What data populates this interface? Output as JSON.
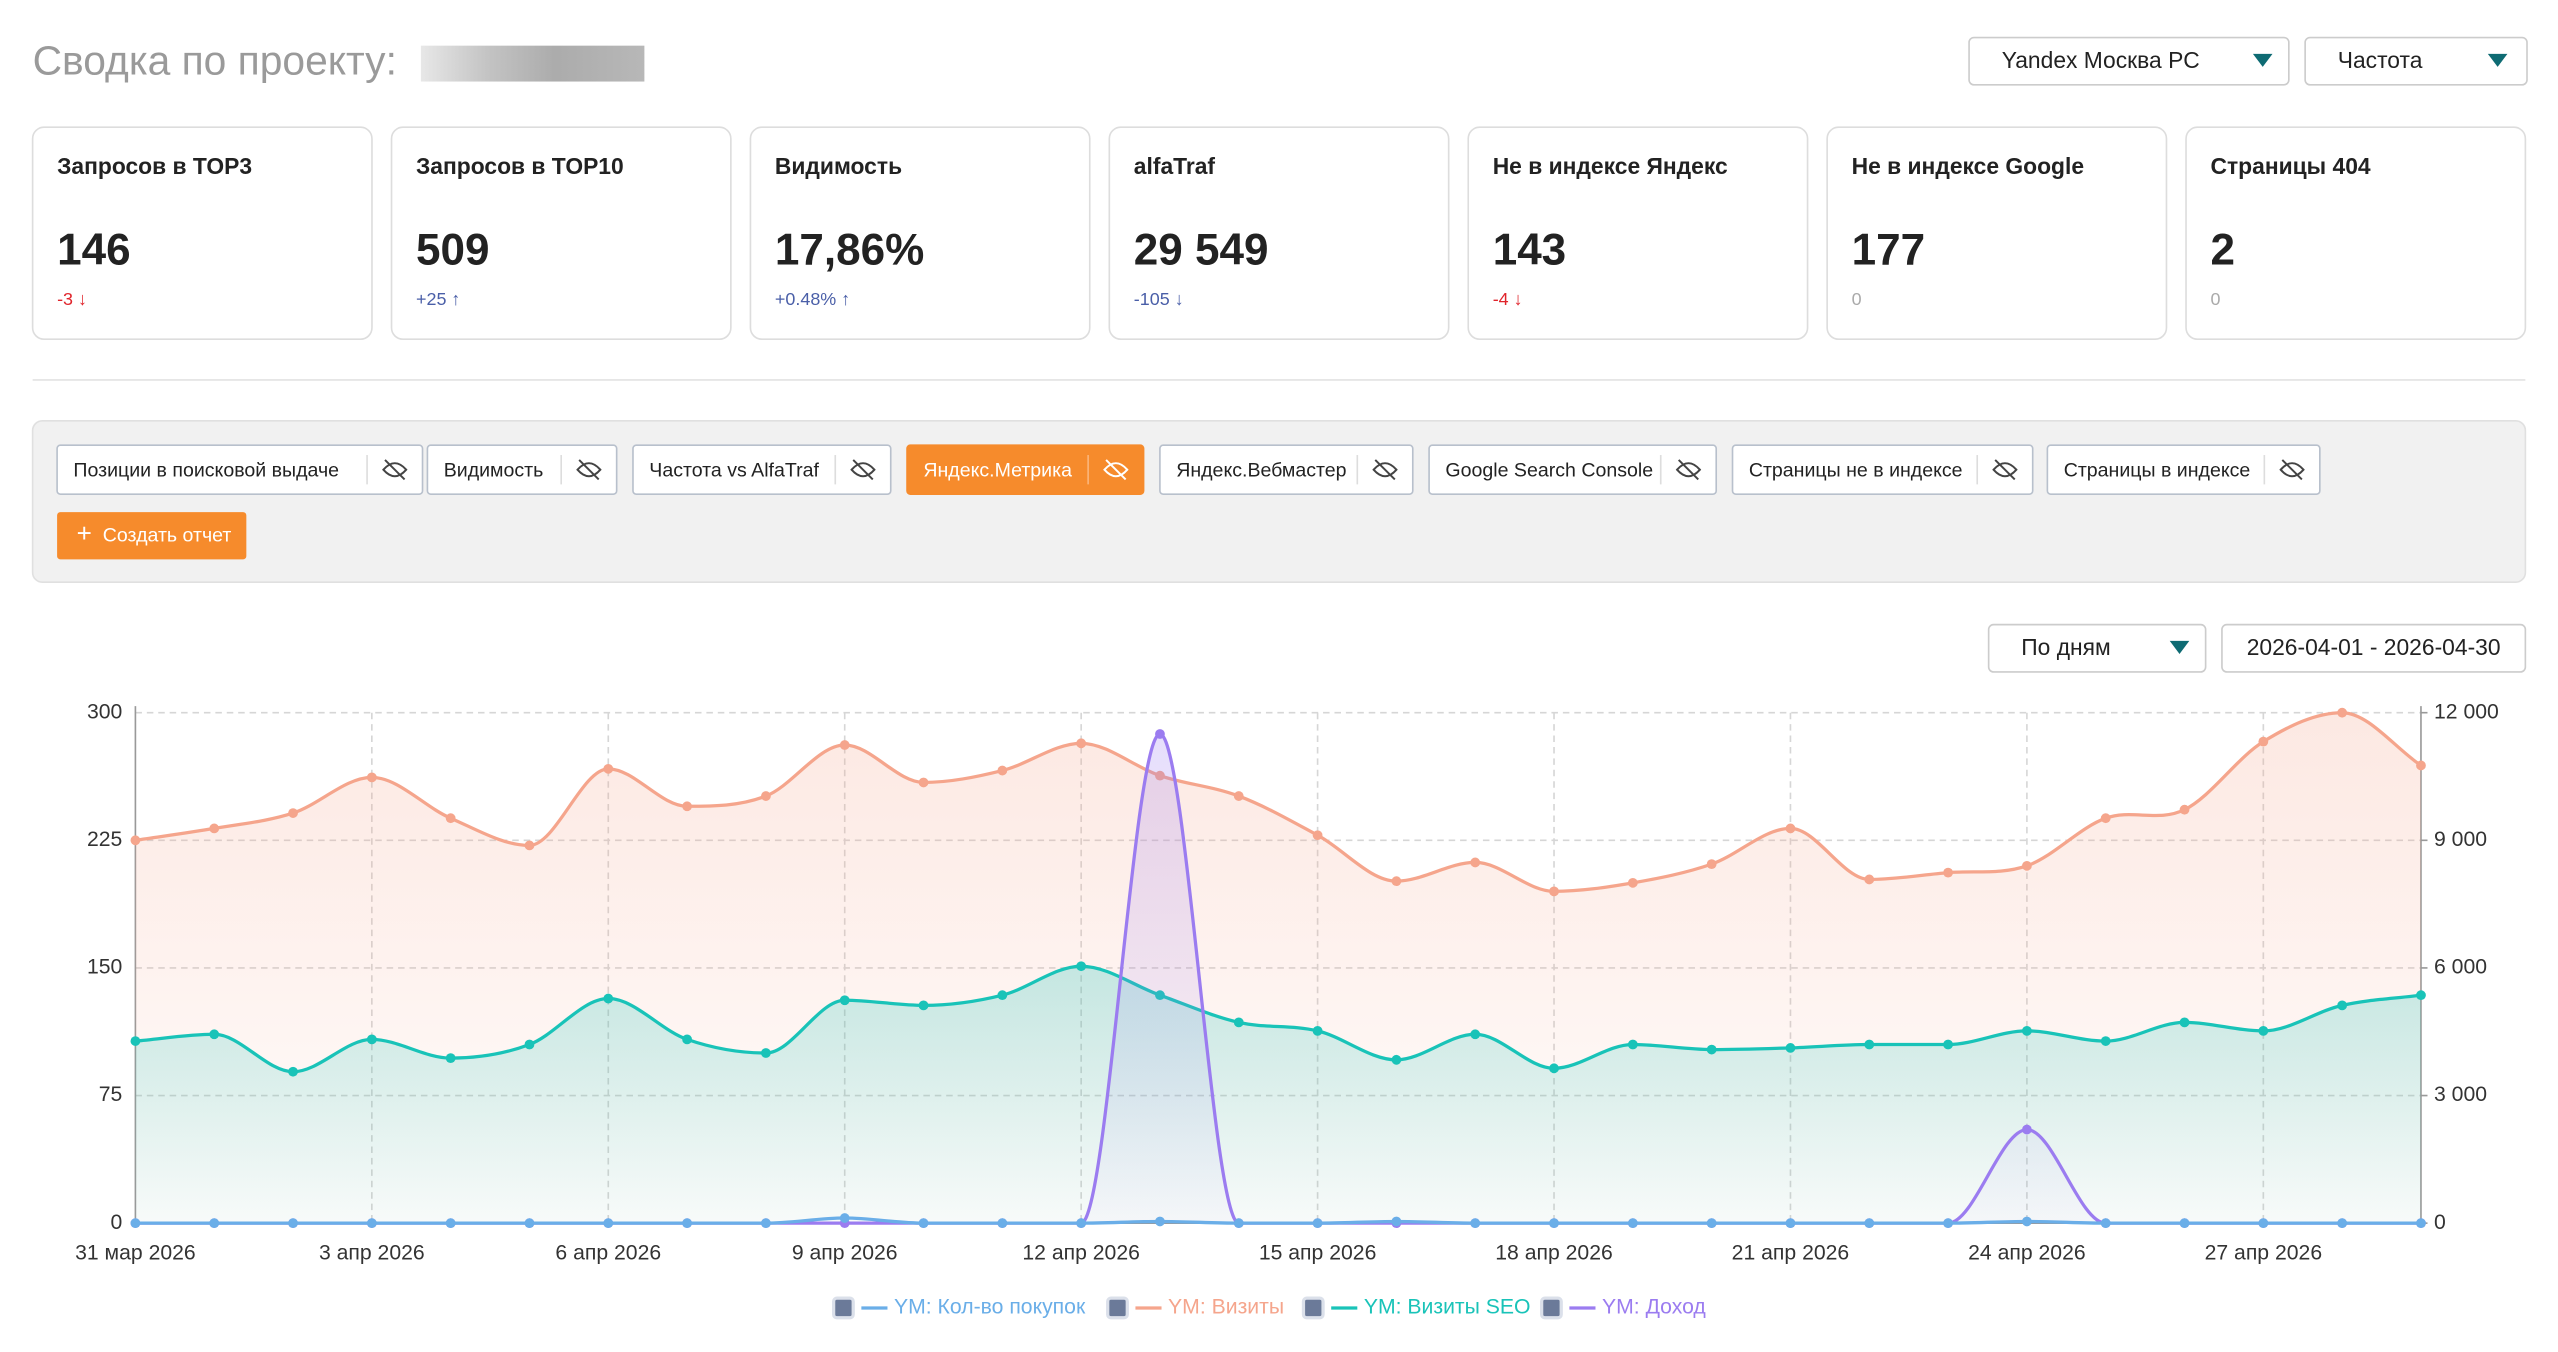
{
  "header": {
    "title": "Сводка по проекту:",
    "region": "Yandex Москва PC",
    "metric": "Частота"
  },
  "cards": [
    {
      "title": "Запросов в TOP3",
      "value": "146",
      "change": "-3 ↓",
      "trend": "down"
    },
    {
      "title": "Запросов в TOP10",
      "value": "509",
      "change": "+25 ↑",
      "trend": "up"
    },
    {
      "title": "Видимость",
      "value": "17,86%",
      "change": "+0.48% ↑",
      "trend": "up"
    },
    {
      "title": "alfaTraf",
      "value": "29 549",
      "change": "-105 ↓",
      "trend": "neutral-down"
    },
    {
      "title": "Не в индексе Яндекс",
      "value": "143",
      "change": "-4 ↓",
      "trend": "down"
    },
    {
      "title": "Не в индексе Google",
      "value": "177",
      "change": "0",
      "trend": "flat"
    },
    {
      "title": "Страницы 404",
      "value": "2",
      "change": "0",
      "trend": "flat"
    }
  ],
  "tabs": [
    "Позиции в поисковой выдаче",
    "Видимость",
    "Частота vs AlfaTraf",
    "Яндекс.Метрика",
    "Яндекс.Вебмастер",
    "Google Search Console",
    "Страницы не в индексе",
    "Страницы в индексе"
  ],
  "active_tab": 3,
  "create_button": "Создать отчет",
  "period": "По дням",
  "date_range": "2026-04-01 - 2026-04-30",
  "chart_data": {
    "type": "line",
    "categories": [
      "31 мар 2026",
      null,
      null,
      "3 апр 2026",
      null,
      null,
      "6 апр 2026",
      null,
      null,
      "9 апр 2026",
      null,
      null,
      "12 апр 2026",
      null,
      null,
      "15 апр 2026",
      null,
      null,
      "18 апр 2026",
      null,
      null,
      "21 апр 2026",
      null,
      null,
      "24 апр 2026",
      null,
      null,
      "27 апр 2026",
      null,
      null
    ],
    "ylim": [
      0,
      300
    ],
    "yticks": [
      0,
      75,
      150,
      225,
      300
    ],
    "y2lim": [
      0,
      12000
    ],
    "y2ticks": [
      {
        "value": 0,
        "label": "0"
      },
      {
        "value": 3000,
        "label": "3 000"
      },
      {
        "value": 6000,
        "label": "6 000"
      },
      {
        "value": 9000,
        "label": "9 000"
      },
      {
        "value": 12000,
        "label": "12 000"
      }
    ],
    "grid": true,
    "series": [
      {
        "name": "YM: Кол-во покупок",
        "color": "#6aaee8",
        "values": [
          0,
          0,
          0,
          0,
          0,
          0,
          0,
          0,
          0,
          3,
          0,
          0,
          0,
          1,
          0,
          0,
          1,
          0,
          0,
          0,
          0,
          0,
          0,
          0,
          1,
          0,
          0,
          0,
          0,
          0
        ]
      },
      {
        "name": "YM: Визиты",
        "color": "#f5a58c",
        "area": true,
        "values": [
          225,
          232,
          241,
          262,
          238,
          222,
          267,
          245,
          251,
          281,
          259,
          266,
          282,
          263,
          251,
          228,
          201,
          212,
          195,
          200,
          211,
          232,
          202,
          206,
          210,
          238,
          243,
          283,
          300,
          269
        ]
      },
      {
        "name": "YM: Визиты SEO",
        "color": "#19c3b8",
        "area": true,
        "values": [
          107,
          111,
          89,
          108,
          97,
          105,
          132,
          108,
          100,
          131,
          128,
          134,
          151,
          134,
          118,
          113,
          96,
          111,
          91,
          105,
          102,
          103,
          105,
          105,
          113,
          107,
          118,
          113,
          128,
          134
        ]
      },
      {
        "name": "YM: Доход",
        "color": "#9b7cf0",
        "axis": "y2",
        "area": true,
        "values": [
          0,
          0,
          0,
          0,
          0,
          0,
          0,
          0,
          0,
          0,
          0,
          0,
          0,
          11500,
          0,
          0,
          0,
          0,
          0,
          0,
          0,
          0,
          0,
          0,
          2200,
          0,
          0,
          0,
          0,
          0
        ]
      }
    ]
  }
}
